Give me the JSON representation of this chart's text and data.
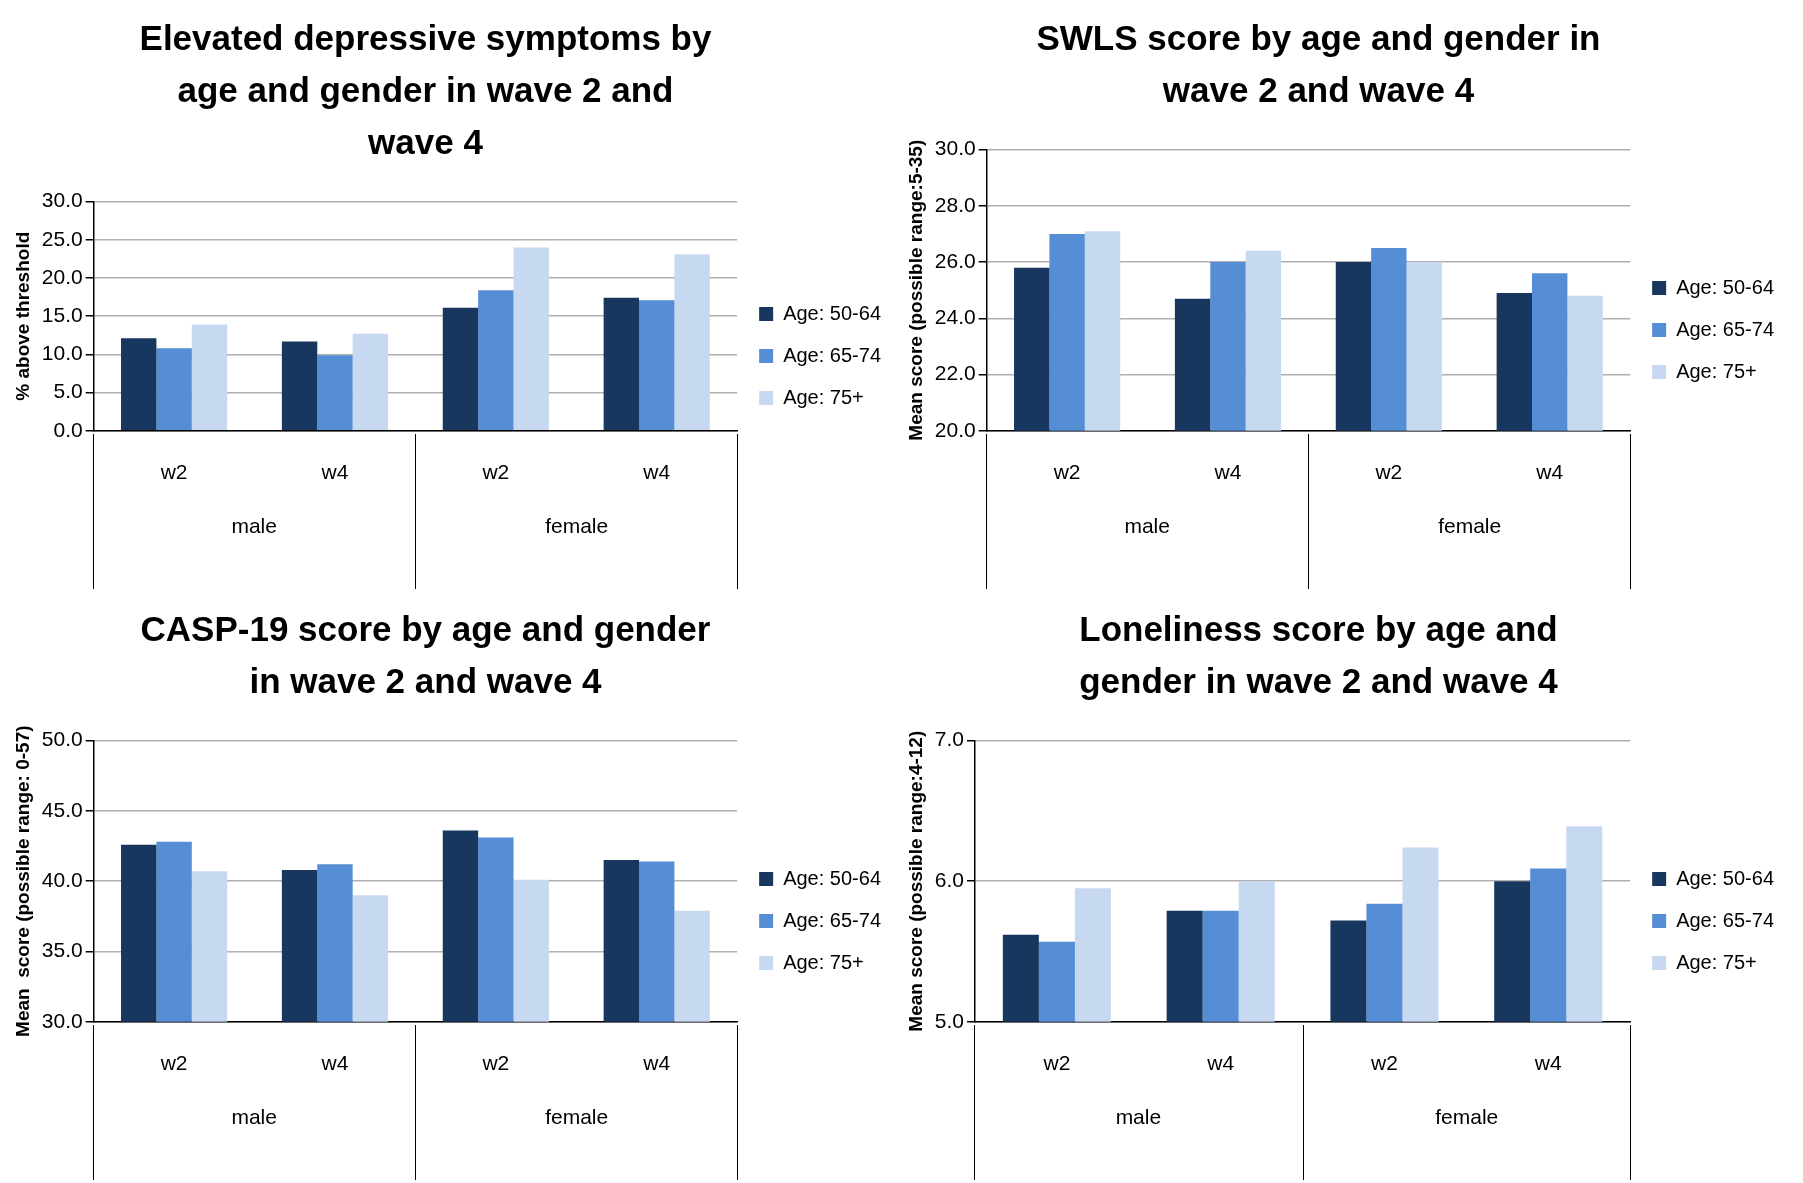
{
  "chart_data": [
    {
      "type": "bar",
      "title": "Elevated depressive symptoms by age and gender in wave 2 and wave 4",
      "ylabel": "% above threshold",
      "categories": [
        "w2",
        "w4",
        "w2",
        "w4"
      ],
      "annotations": [
        "male",
        "female"
      ],
      "series": [
        {
          "name": "Age: 50-64",
          "color": "#17375e",
          "values": [
            12.1,
            11.7,
            16.1,
            17.4
          ]
        },
        {
          "name": "Age: 65-74",
          "color": "#558ed5",
          "values": [
            10.8,
            9.9,
            18.4,
            17.1
          ]
        },
        {
          "name": "Age: 75+",
          "color": "#c6d9f1",
          "values": [
            13.9,
            12.7,
            24.0,
            23.1
          ]
        }
      ],
      "ylim": [
        0,
        30
      ],
      "yticks": [
        {
          "value": 0,
          "label": "0.0"
        },
        {
          "value": 5,
          "label": "5.0"
        },
        {
          "value": 10,
          "label": "10.0"
        },
        {
          "value": 15,
          "label": "15.0"
        },
        {
          "value": 20,
          "label": "20.0"
        },
        {
          "value": 25,
          "label": "25.0"
        },
        {
          "value": 30,
          "label": "30.0"
        }
      ],
      "grid": "y",
      "legend": "right"
    },
    {
      "type": "bar",
      "title": "SWLS score by age and gender in wave 2 and wave 4",
      "ylabel": "Mean score (possible range:5-35)",
      "categories": [
        "w2",
        "w4",
        "w2",
        "w4"
      ],
      "annotations": [
        "male",
        "female"
      ],
      "series": [
        {
          "name": "Age: 50-64",
          "color": "#17375e",
          "values": [
            25.8,
            24.7,
            26.0,
            24.9
          ]
        },
        {
          "name": "Age: 65-74",
          "color": "#558ed5",
          "values": [
            27.0,
            26.0,
            26.5,
            25.6
          ]
        },
        {
          "name": "Age: 75+",
          "color": "#c6d9f1",
          "values": [
            27.1,
            26.4,
            26.0,
            24.8
          ]
        }
      ],
      "ylim": [
        20,
        30
      ],
      "yticks": [
        {
          "value": 20,
          "label": "20.0"
        },
        {
          "value": 22,
          "label": "22.0"
        },
        {
          "value": 24,
          "label": "24.0"
        },
        {
          "value": 26,
          "label": "26.0"
        },
        {
          "value": 28,
          "label": "28.0"
        },
        {
          "value": 30,
          "label": "30.0"
        }
      ],
      "grid": "y",
      "legend": "right"
    },
    {
      "type": "bar",
      "title": "CASP-19 score by age and gender in wave 2 and wave 4",
      "ylabel": "Mean  score (possible range: 0-57)",
      "categories": [
        "w2",
        "w4",
        "w2",
        "w4"
      ],
      "annotations": [
        "male",
        "female"
      ],
      "series": [
        {
          "name": "Age: 50-64",
          "color": "#17375e",
          "values": [
            42.6,
            40.8,
            43.6,
            41.5
          ]
        },
        {
          "name": "Age: 65-74",
          "color": "#558ed5",
          "values": [
            42.8,
            41.2,
            43.1,
            41.4
          ]
        },
        {
          "name": "Age: 75+",
          "color": "#c6d9f1",
          "values": [
            40.7,
            39.0,
            40.1,
            37.9
          ]
        }
      ],
      "ylim": [
        30,
        50
      ],
      "yticks": [
        {
          "value": 30,
          "label": "30.0"
        },
        {
          "value": 35,
          "label": "35.0"
        },
        {
          "value": 40,
          "label": "40.0"
        },
        {
          "value": 45,
          "label": "45.0"
        },
        {
          "value": 50,
          "label": "50.0"
        }
      ],
      "grid": "y",
      "legend": "right"
    },
    {
      "type": "bar",
      "title": "Loneliness score by age and gender in wave 2 and wave 4",
      "ylabel": "Mean score (possible range:4-12)",
      "categories": [
        "w2",
        "w4",
        "w2",
        "w4"
      ],
      "annotations": [
        "male",
        "female"
      ],
      "series": [
        {
          "name": "Age: 50-64",
          "color": "#17375e",
          "values": [
            5.62,
            5.79,
            5.72,
            6.0
          ]
        },
        {
          "name": "Age: 65-74",
          "color": "#558ed5",
          "values": [
            5.57,
            5.79,
            5.84,
            6.09
          ]
        },
        {
          "name": "Age: 75+",
          "color": "#c6d9f1",
          "values": [
            5.95,
            6.0,
            6.24,
            6.39
          ]
        }
      ],
      "ylim": [
        5,
        7
      ],
      "yticks": [
        {
          "value": 5,
          "label": "5.0"
        },
        {
          "value": 6,
          "label": "6.0"
        },
        {
          "value": 7,
          "label": "7.0"
        }
      ],
      "grid": "y",
      "legend": "right"
    }
  ]
}
